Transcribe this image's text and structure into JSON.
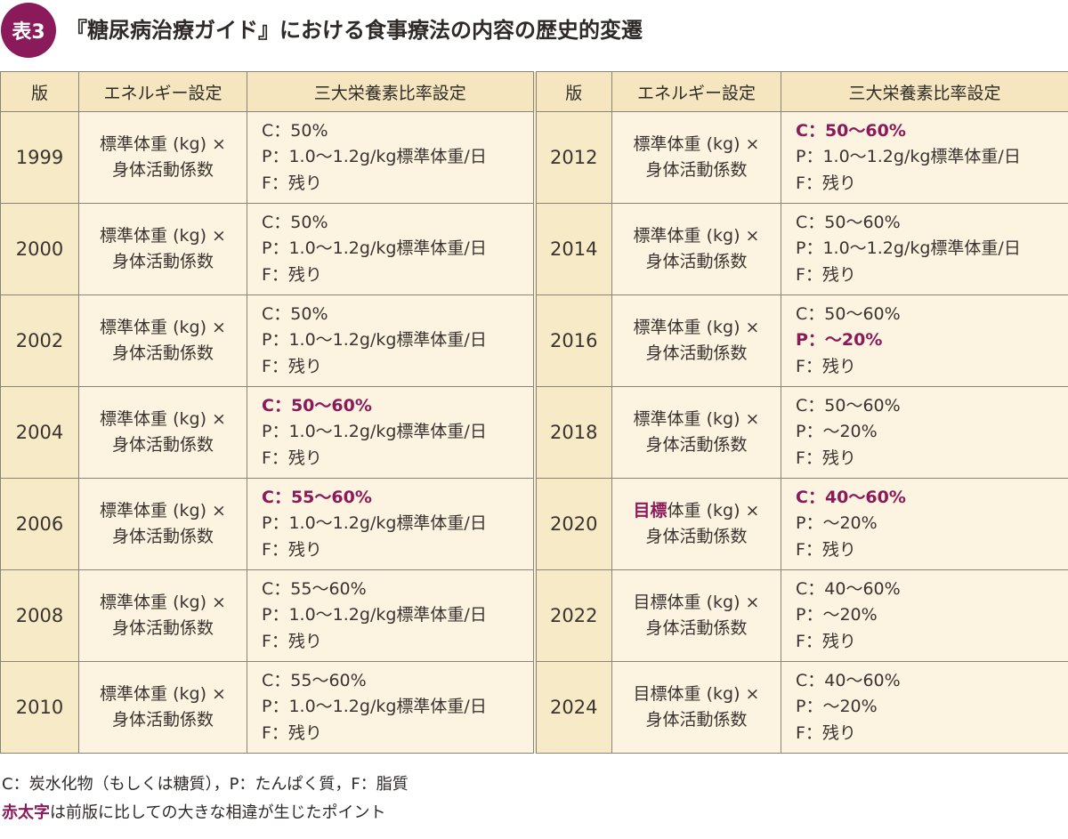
{
  "title": {
    "badge": "表3",
    "text": "『糖尿病治療ガイド』における食事療法の内容の歴史的変遷"
  },
  "colors": {
    "accent": "#8b1a5a",
    "header_bg": "#f5e6bf",
    "year_bg": "#f7eac6",
    "cell_bg": "#fcf4e0"
  },
  "headers": [
    "版",
    "エネルギー設定",
    "三大栄養素比率設定",
    "版",
    "エネルギー設定",
    "三大栄養素比率設定"
  ],
  "rows": [
    {
      "left": {
        "year": "1999",
        "energy": [
          [
            {
              "text": "標準体重 (kg) ×"
            }
          ],
          [
            {
              "text": "身体活動係数"
            }
          ]
        ],
        "nutrients": [
          [
            {
              "text": "C：50%"
            }
          ],
          [
            {
              "text": "P：1.0〜1.2g/kg標準体重/日"
            }
          ],
          [
            {
              "text": "F：残り"
            }
          ]
        ]
      },
      "right": {
        "year": "2012",
        "energy": [
          [
            {
              "text": "標準体重 (kg) ×"
            }
          ],
          [
            {
              "text": "身体活動係数"
            }
          ]
        ],
        "nutrients": [
          [
            {
              "text": "C：50〜60%",
              "hl": true
            }
          ],
          [
            {
              "text": "P：1.0〜1.2g/kg標準体重/日"
            }
          ],
          [
            {
              "text": "F：残り"
            }
          ]
        ]
      }
    },
    {
      "left": {
        "year": "2000",
        "energy": [
          [
            {
              "text": "標準体重 (kg) ×"
            }
          ],
          [
            {
              "text": "身体活動係数"
            }
          ]
        ],
        "nutrients": [
          [
            {
              "text": "C：50%"
            }
          ],
          [
            {
              "text": "P：1.0〜1.2g/kg標準体重/日"
            }
          ],
          [
            {
              "text": "F：残り"
            }
          ]
        ]
      },
      "right": {
        "year": "2014",
        "energy": [
          [
            {
              "text": "標準体重 (kg) ×"
            }
          ],
          [
            {
              "text": "身体活動係数"
            }
          ]
        ],
        "nutrients": [
          [
            {
              "text": "C：50〜60%"
            }
          ],
          [
            {
              "text": "P：1.0〜1.2g/kg標準体重/日"
            }
          ],
          [
            {
              "text": "F：残り"
            }
          ]
        ]
      }
    },
    {
      "left": {
        "year": "2002",
        "energy": [
          [
            {
              "text": "標準体重 (kg) ×"
            }
          ],
          [
            {
              "text": "身体活動係数"
            }
          ]
        ],
        "nutrients": [
          [
            {
              "text": "C：50%"
            }
          ],
          [
            {
              "text": "P：1.0〜1.2g/kg標準体重/日"
            }
          ],
          [
            {
              "text": "F：残り"
            }
          ]
        ]
      },
      "right": {
        "year": "2016",
        "energy": [
          [
            {
              "text": "標準体重 (kg) ×"
            }
          ],
          [
            {
              "text": "身体活動係数"
            }
          ]
        ],
        "nutrients": [
          [
            {
              "text": "C：50〜60%"
            }
          ],
          [
            {
              "text": "P：〜20%",
              "hl": true
            }
          ],
          [
            {
              "text": "F：残り"
            }
          ]
        ]
      }
    },
    {
      "left": {
        "year": "2004",
        "energy": [
          [
            {
              "text": "標準体重 (kg) ×"
            }
          ],
          [
            {
              "text": "身体活動係数"
            }
          ]
        ],
        "nutrients": [
          [
            {
              "text": "C：50〜60%",
              "hl": true
            }
          ],
          [
            {
              "text": "P：1.0〜1.2g/kg標準体重/日"
            }
          ],
          [
            {
              "text": "F：残り"
            }
          ]
        ]
      },
      "right": {
        "year": "2018",
        "energy": [
          [
            {
              "text": "標準体重 (kg) ×"
            }
          ],
          [
            {
              "text": "身体活動係数"
            }
          ]
        ],
        "nutrients": [
          [
            {
              "text": "C：50〜60%"
            }
          ],
          [
            {
              "text": "P：〜20%"
            }
          ],
          [
            {
              "text": "F：残り"
            }
          ]
        ]
      }
    },
    {
      "left": {
        "year": "2006",
        "energy": [
          [
            {
              "text": "標準体重 (kg) ×"
            }
          ],
          [
            {
              "text": "身体活動係数"
            }
          ]
        ],
        "nutrients": [
          [
            {
              "text": "C：55〜60%",
              "hl": true
            }
          ],
          [
            {
              "text": "P：1.0〜1.2g/kg標準体重/日"
            }
          ],
          [
            {
              "text": "F：残り"
            }
          ]
        ]
      },
      "right": {
        "year": "2020",
        "energy": [
          [
            {
              "text": "目標",
              "hl": true
            },
            {
              "text": "体重 (kg) ×"
            }
          ],
          [
            {
              "text": "身体活動係数"
            }
          ]
        ],
        "nutrients": [
          [
            {
              "text": "C：40〜60%",
              "hl": true
            }
          ],
          [
            {
              "text": "P：〜20%"
            }
          ],
          [
            {
              "text": "F：残り"
            }
          ]
        ]
      }
    },
    {
      "left": {
        "year": "2008",
        "energy": [
          [
            {
              "text": "標準体重 (kg) ×"
            }
          ],
          [
            {
              "text": "身体活動係数"
            }
          ]
        ],
        "nutrients": [
          [
            {
              "text": "C：55〜60%"
            }
          ],
          [
            {
              "text": "P：1.0〜1.2g/kg標準体重/日"
            }
          ],
          [
            {
              "text": "F：残り"
            }
          ]
        ]
      },
      "right": {
        "year": "2022",
        "energy": [
          [
            {
              "text": "目標体重 (kg) ×"
            }
          ],
          [
            {
              "text": "身体活動係数"
            }
          ]
        ],
        "nutrients": [
          [
            {
              "text": "C：40〜60%"
            }
          ],
          [
            {
              "text": "P：〜20%"
            }
          ],
          [
            {
              "text": "F：残り"
            }
          ]
        ]
      }
    },
    {
      "left": {
        "year": "2010",
        "energy": [
          [
            {
              "text": "標準体重 (kg) ×"
            }
          ],
          [
            {
              "text": "身体活動係数"
            }
          ]
        ],
        "nutrients": [
          [
            {
              "text": "C：55〜60%"
            }
          ],
          [
            {
              "text": "P：1.0〜1.2g/kg標準体重/日"
            }
          ],
          [
            {
              "text": "F：残り"
            }
          ]
        ]
      },
      "right": {
        "year": "2024",
        "energy": [
          [
            {
              "text": "目標体重 (kg) ×"
            }
          ],
          [
            {
              "text": "身体活動係数"
            }
          ]
        ],
        "nutrients": [
          [
            {
              "text": "C：40〜60%"
            }
          ],
          [
            {
              "text": "P：〜20%"
            }
          ],
          [
            {
              "text": "F：残り"
            }
          ]
        ]
      }
    }
  ],
  "notes": {
    "line1": "C：炭水化物（もしくは糖質），P：たんぱく質，F：脂質",
    "line2_highlight": "赤太字",
    "line2_rest": "は前版に比しての大きな相違が生じたポイント"
  }
}
